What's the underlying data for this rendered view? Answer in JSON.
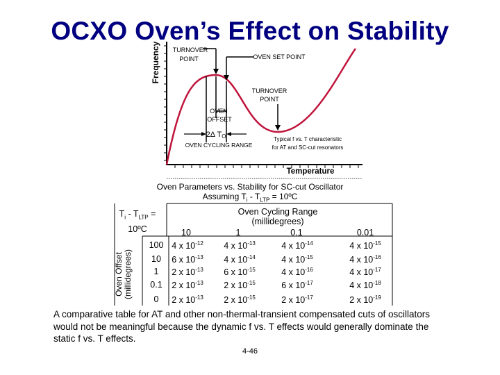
{
  "title": "OCXO Oven’s Effect on Stability",
  "chart": {
    "y_axis_label": "Frequency",
    "x_axis_label": "Temperature",
    "annotations": {
      "turnover_point_top": [
        "TURNOVER",
        "POINT"
      ],
      "oven_set_point": "OVEN SET POINT",
      "turnover_point_right": [
        "TURNOVER",
        "POINT"
      ],
      "oven_offset": [
        "OVEN",
        "OFFSET"
      ],
      "delta_to": "2Δ T",
      "delta_to_sub": "O",
      "oven_cycling_range": "OVEN CYCLING RANGE",
      "typical_note": [
        "Typical f vs. T characteristic",
        "for AT and SC-cut resonators"
      ]
    },
    "colors": {
      "curve": "#c0143c",
      "axes": "#000000"
    }
  },
  "chart_data": {
    "type": "line",
    "title": "",
    "xlabel": "Temperature",
    "ylabel": "Frequency",
    "series": [],
    "note": "Qualitative cubic f vs. T curve with turnover points; no numeric values shown"
  },
  "caption": {
    "line1": "Oven Parameters vs. Stability for SC-cut Oscillator",
    "line2_pre": "Assuming T",
    "line2_sub1": "i",
    "line2_mid": " - T",
    "line2_sub2": "LTP",
    "line2_post": " = 10ºC"
  },
  "table": {
    "corner_pre": "T",
    "corner_sub1": "i",
    "corner_mid": " - T",
    "corner_sub2": "LTP",
    "corner_eq": " =",
    "corner_line2": "10ºC",
    "cycling_header": [
      "Oven Cycling Range",
      "(millidegrees)"
    ],
    "offset_header": [
      "Oven Offset",
      "(millidegrees)"
    ],
    "columns": [
      "10",
      "1",
      "0.1",
      "0.01"
    ],
    "rows": [
      {
        "offset": "100",
        "cells": [
          [
            "4 x 10",
            "-12"
          ],
          [
            "4 x 10",
            "-13"
          ],
          [
            "4 x 10",
            "-14"
          ],
          [
            "4 x 10",
            "-15"
          ]
        ]
      },
      {
        "offset": "10",
        "cells": [
          [
            "6 x 10",
            "-13"
          ],
          [
            "4 x 10",
            "-14"
          ],
          [
            "4 x 10",
            "-15"
          ],
          [
            "4 x 10",
            "-16"
          ]
        ]
      },
      {
        "offset": "1",
        "cells": [
          [
            "2 x 10",
            "-13"
          ],
          [
            "6 x 10",
            "-15"
          ],
          [
            "4 x 10",
            "-16"
          ],
          [
            "4 x 10",
            "-17"
          ]
        ]
      },
      {
        "offset": "0.1",
        "cells": [
          [
            "2 x 10",
            "-13"
          ],
          [
            "2 x 10",
            "-15"
          ],
          [
            "6 x 10",
            "-17"
          ],
          [
            "4 x 10",
            "-18"
          ]
        ]
      },
      {
        "offset": "0",
        "cells": [
          [
            "2 x 10",
            "-13"
          ],
          [
            "2 x 10",
            "-15"
          ],
          [
            "2 x 10",
            "-17"
          ],
          [
            "2 x 10",
            "-19"
          ]
        ]
      }
    ]
  },
  "body_text": "A comparative table for AT and other non-thermal-transient compensated cuts of oscillators would not be meaningful because the dynamic f vs. T effects would generally dominate the static f vs. T effects.",
  "page_number": "4-46"
}
